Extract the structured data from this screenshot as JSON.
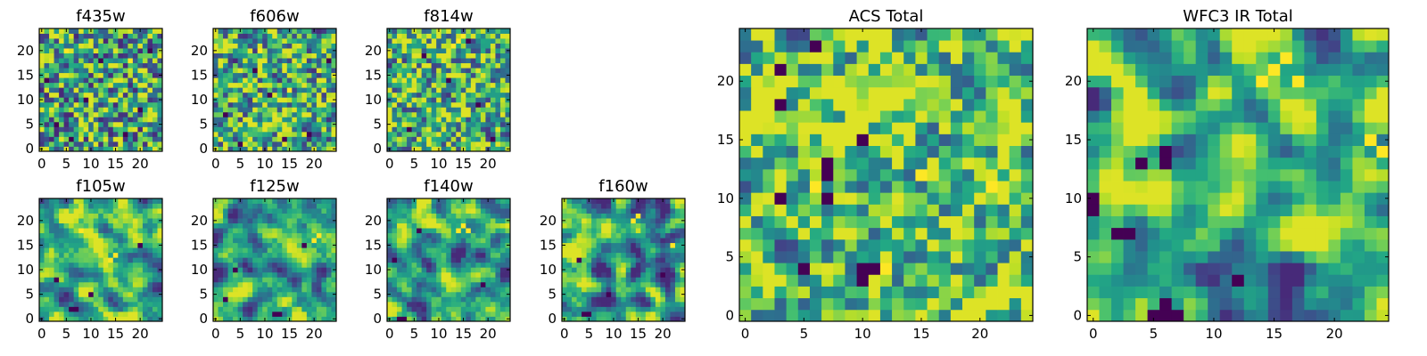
{
  "chart_data": [
    {
      "id": "f435w",
      "type": "heatmap",
      "title": "f435w",
      "grid_size": 25,
      "xlim": [
        0,
        24
      ],
      "ylim": [
        0,
        24
      ],
      "x_ticks": [
        "0",
        "5",
        "10",
        "15",
        "20"
      ],
      "y_ticks": [
        "0",
        "5",
        "10",
        "15",
        "20"
      ],
      "colormap": "viridis",
      "seed": 435,
      "smooth": 0.15,
      "bias": 0.1,
      "contrast": 1.0,
      "dark_cells": [
        [
          3,
          5
        ],
        [
          20,
          8
        ],
        [
          6,
          2
        ],
        [
          12,
          18
        ],
        [
          1,
          14
        ],
        [
          17,
          3
        ],
        [
          9,
          10
        ],
        [
          22,
          20
        ]
      ],
      "bright_cells": [
        [
          18,
          18
        ],
        [
          5,
          20
        ]
      ]
    },
    {
      "id": "f606w",
      "type": "heatmap",
      "title": "f606w",
      "grid_size": 25,
      "xlim": [
        0,
        24
      ],
      "ylim": [
        0,
        24
      ],
      "x_ticks": [
        "0",
        "5",
        "10",
        "15",
        "20"
      ],
      "y_ticks": [
        "0",
        "5",
        "10",
        "15",
        "20"
      ],
      "colormap": "viridis",
      "seed": 606,
      "smooth": 0.18,
      "bias": 0.12,
      "contrast": 1.0,
      "dark_cells": [
        [
          2,
          7
        ],
        [
          19,
          3
        ],
        [
          8,
          16
        ],
        [
          14,
          2
        ],
        [
          23,
          18
        ],
        [
          11,
          11
        ],
        [
          5,
          1
        ]
      ],
      "bright_cells": [
        [
          15,
          12
        ],
        [
          9,
          20
        ]
      ]
    },
    {
      "id": "f814w",
      "type": "heatmap",
      "title": "f814w",
      "grid_size": 25,
      "xlim": [
        0,
        24
      ],
      "ylim": [
        0,
        24
      ],
      "x_ticks": [
        "0",
        "5",
        "10",
        "15",
        "20"
      ],
      "y_ticks": [
        "0",
        "5",
        "10",
        "15",
        "20"
      ],
      "colormap": "viridis",
      "seed": 814,
      "smooth": 0.2,
      "bias": 0.15,
      "contrast": 1.0,
      "dark_cells": [
        [
          18,
          9
        ],
        [
          4,
          4
        ],
        [
          12,
          14
        ],
        [
          21,
          2
        ],
        [
          7,
          19
        ],
        [
          16,
          22
        ]
      ],
      "bright_cells": [
        [
          14,
          22
        ],
        [
          15,
          23
        ],
        [
          13,
          21
        ]
      ]
    },
    {
      "id": "f105w",
      "type": "heatmap",
      "title": "f105w",
      "grid_size": 25,
      "xlim": [
        0,
        24
      ],
      "ylim": [
        0,
        24
      ],
      "x_ticks": [
        "0",
        "5",
        "10",
        "15",
        "20"
      ],
      "y_ticks": [
        "0",
        "5",
        "10",
        "15",
        "20"
      ],
      "colormap": "viridis",
      "seed": 105,
      "smooth": 0.7,
      "bias": 0.18,
      "contrast": 1.2,
      "dark_cells": [
        [
          3,
          8
        ],
        [
          6,
          2
        ],
        [
          7,
          2
        ],
        [
          20,
          15
        ],
        [
          10,
          5
        ]
      ],
      "bright_cells": [
        [
          14,
          12
        ],
        [
          15,
          13
        ],
        [
          8,
          18
        ]
      ]
    },
    {
      "id": "f125w",
      "type": "heatmap",
      "title": "f125w",
      "grid_size": 25,
      "xlim": [
        0,
        24
      ],
      "ylim": [
        0,
        24
      ],
      "x_ticks": [
        "0",
        "5",
        "10",
        "15",
        "20"
      ],
      "y_ticks": [
        "0",
        "5",
        "10",
        "15",
        "20"
      ],
      "colormap": "viridis",
      "seed": 125,
      "smooth": 0.7,
      "bias": 0.1,
      "contrast": 1.3,
      "dark_cells": [
        [
          12,
          1
        ],
        [
          13,
          1
        ],
        [
          4,
          10
        ],
        [
          18,
          15
        ],
        [
          2,
          4
        ]
      ],
      "bright_cells": [
        [
          20,
          16
        ],
        [
          21,
          17
        ]
      ]
    },
    {
      "id": "f140w",
      "type": "heatmap",
      "title": "f140w",
      "grid_size": 25,
      "xlim": [
        0,
        24
      ],
      "ylim": [
        0,
        24
      ],
      "x_ticks": [
        "0",
        "5",
        "10",
        "15",
        "20"
      ],
      "y_ticks": [
        "0",
        "5",
        "10",
        "15",
        "20"
      ],
      "colormap": "viridis",
      "seed": 140,
      "smooth": 0.7,
      "bias": 0.1,
      "contrast": 1.3,
      "dark_cells": [
        [
          2,
          0
        ],
        [
          3,
          0
        ],
        [
          1,
          12
        ],
        [
          6,
          18
        ],
        [
          19,
          7
        ]
      ],
      "bright_cells": [
        [
          14,
          18
        ],
        [
          15,
          19
        ],
        [
          16,
          18
        ]
      ]
    },
    {
      "id": "f160w",
      "type": "heatmap",
      "title": "f160w",
      "grid_size": 25,
      "xlim": [
        0,
        24
      ],
      "ylim": [
        0,
        24
      ],
      "x_ticks": [
        "0",
        "5",
        "10",
        "15",
        "20"
      ],
      "y_ticks": [
        "0",
        "5",
        "10",
        "15",
        "20"
      ],
      "colormap": "viridis",
      "seed": 160,
      "smooth": 0.75,
      "bias": 0.08,
      "contrast": 1.3,
      "dark_cells": [
        [
          4,
          1
        ],
        [
          5,
          1
        ],
        [
          3,
          12
        ],
        [
          9,
          5
        ],
        [
          20,
          9
        ]
      ],
      "bright_cells": [
        [
          14,
          20
        ],
        [
          15,
          21
        ],
        [
          22,
          15
        ]
      ]
    },
    {
      "id": "acs-total",
      "type": "heatmap",
      "title": "ACS Total",
      "grid_size": 25,
      "xlim": [
        0,
        24
      ],
      "ylim": [
        0,
        24
      ],
      "x_ticks": [
        "0",
        "5",
        "10",
        "15",
        "20"
      ],
      "y_ticks": [
        "0",
        "5",
        "10",
        "15",
        "20"
      ],
      "colormap": "viridis",
      "seed": 777,
      "smooth": 0.4,
      "bias": 0.2,
      "contrast": 1.0,
      "dark_cells": [
        [
          6,
          23
        ],
        [
          3,
          21
        ],
        [
          3,
          18
        ],
        [
          10,
          15
        ],
        [
          7,
          13
        ],
        [
          7,
          12
        ],
        [
          3,
          10
        ],
        [
          7,
          10
        ],
        [
          5,
          4
        ],
        [
          10,
          4
        ],
        [
          11,
          4
        ],
        [
          10,
          3
        ]
      ],
      "bright_cells": [
        [
          12,
          4
        ],
        [
          6,
          11
        ],
        [
          15,
          12
        ],
        [
          21,
          11
        ]
      ]
    },
    {
      "id": "wfc3-ir-total",
      "type": "heatmap",
      "title": "WFC3 IR Total",
      "grid_size": 25,
      "xlim": [
        0,
        24
      ],
      "ylim": [
        0,
        24
      ],
      "x_ticks": [
        "0",
        "5",
        "10",
        "15",
        "20"
      ],
      "y_ticks": [
        "0",
        "5",
        "10",
        "15",
        "20"
      ],
      "colormap": "viridis",
      "seed": 999,
      "smooth": 0.8,
      "bias": 0.15,
      "contrast": 1.4,
      "dark_cells": [
        [
          0,
          10
        ],
        [
          0,
          9
        ],
        [
          2,
          7
        ],
        [
          3,
          7
        ],
        [
          4,
          13
        ],
        [
          6,
          14
        ],
        [
          6,
          13
        ],
        [
          5,
          0
        ],
        [
          6,
          0
        ],
        [
          6,
          1
        ],
        [
          7,
          0
        ],
        [
          12,
          3
        ]
      ],
      "bright_cells": [
        [
          15,
          21
        ],
        [
          16,
          22
        ],
        [
          17,
          20
        ],
        [
          23,
          15
        ],
        [
          24,
          14
        ],
        [
          14,
          20
        ]
      ]
    }
  ]
}
